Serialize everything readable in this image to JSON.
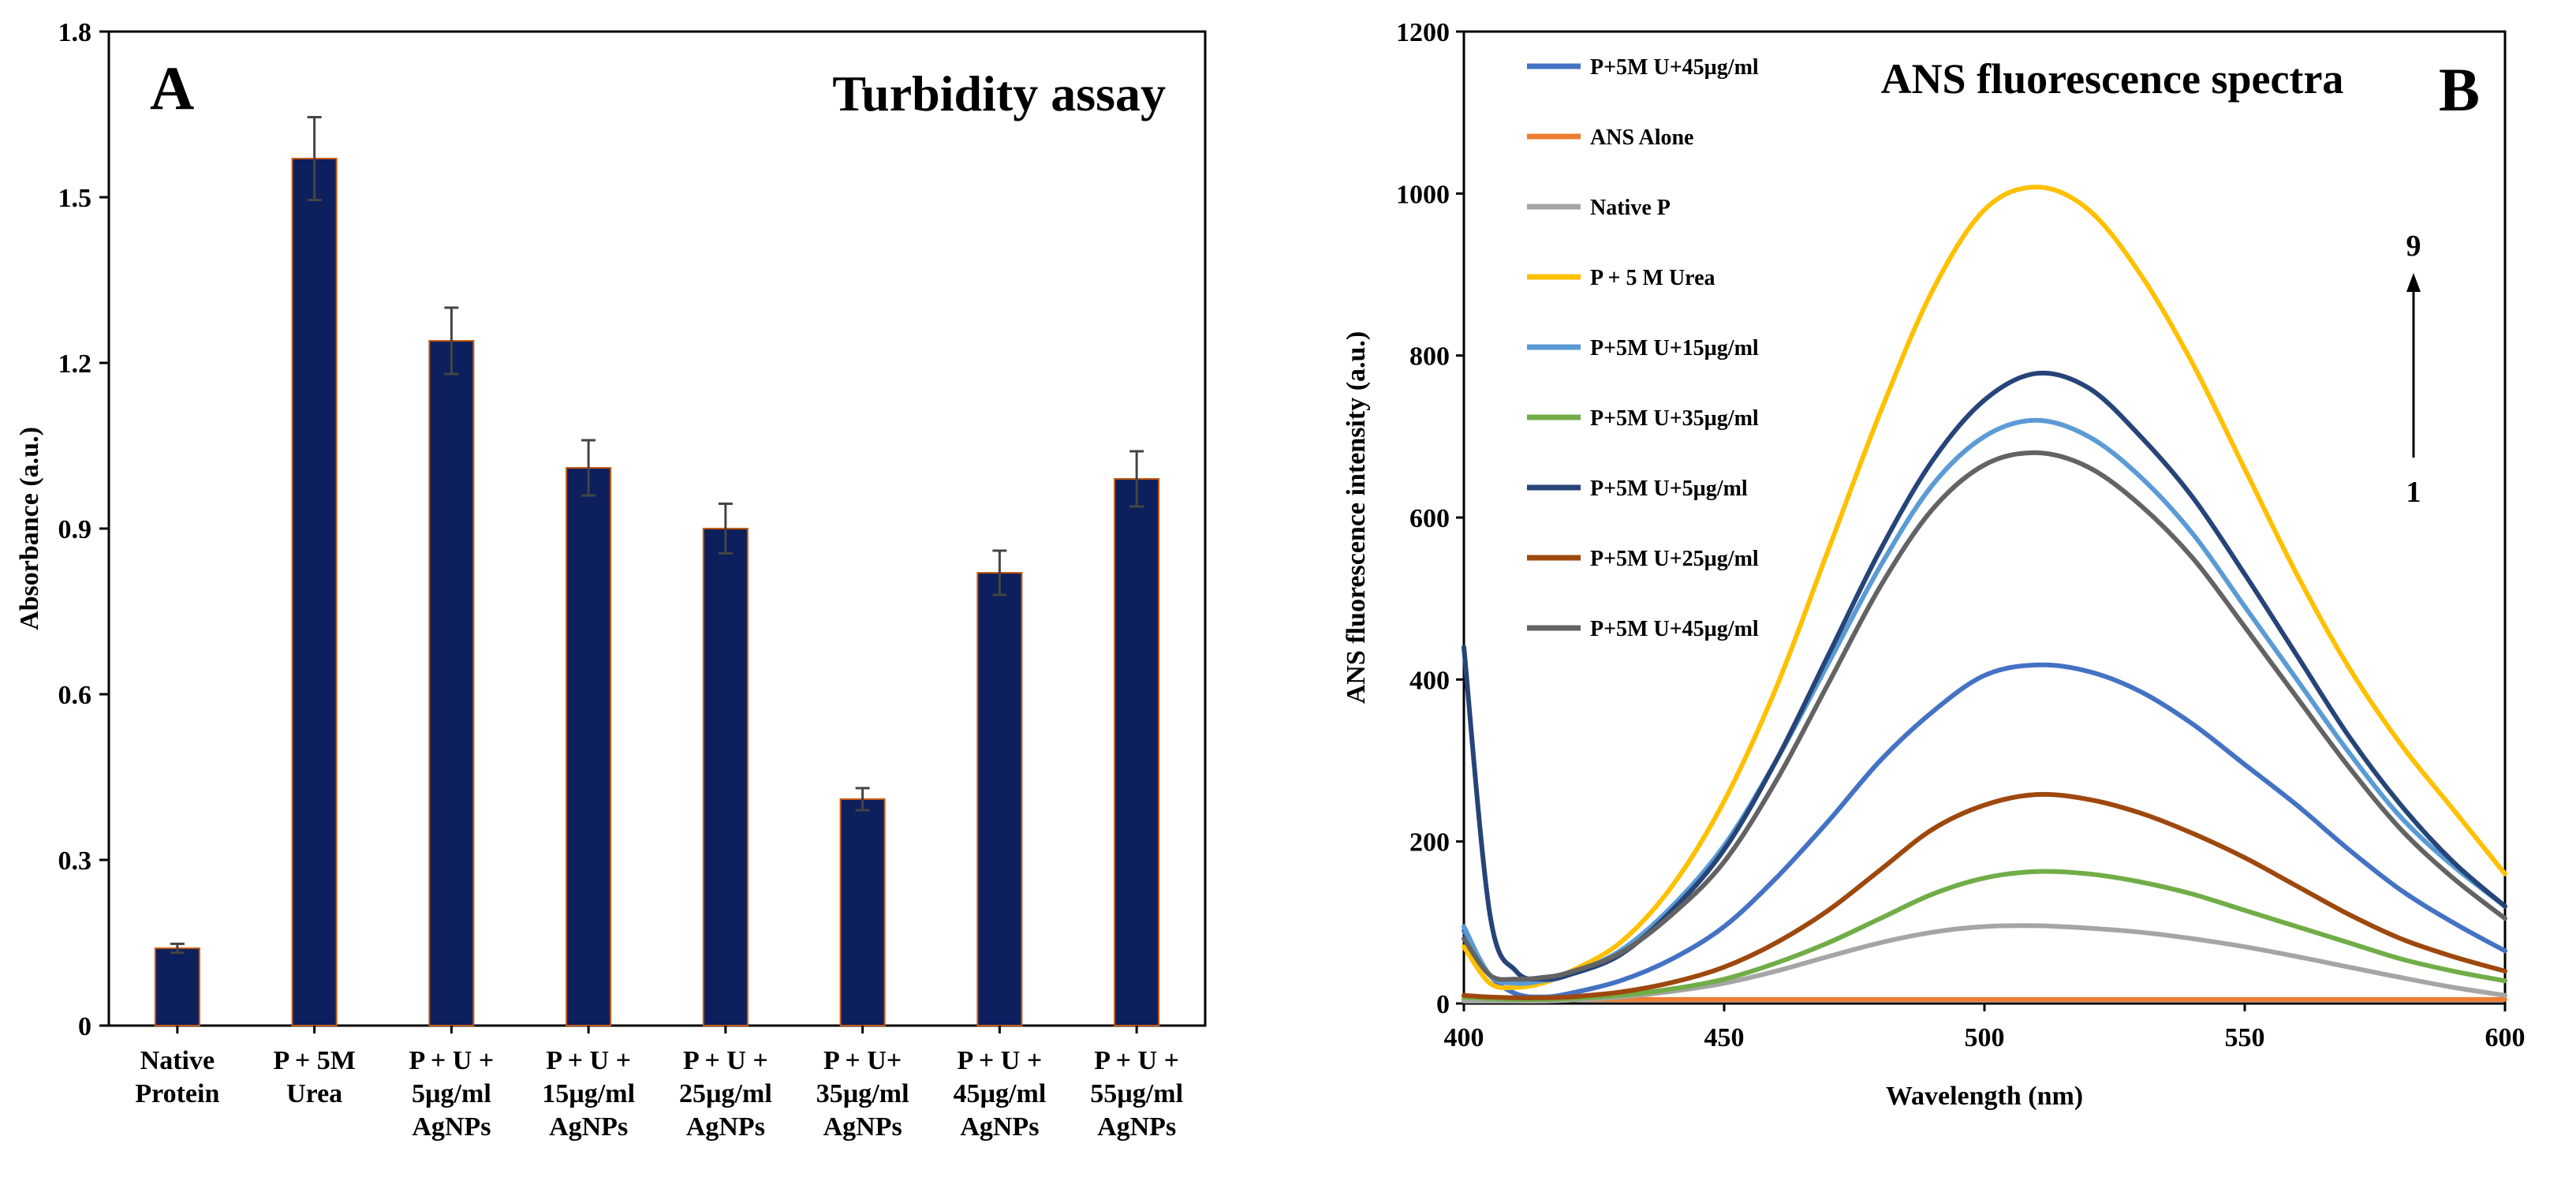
{
  "chart_data": [
    {
      "type": "bar",
      "panel_label": "A",
      "title": "Turbidity assay",
      "xlabel": "",
      "ylabel": "Absorbance (a.u.)",
      "ylim": [
        0,
        1.8
      ],
      "yticks": [
        "0",
        "0.3",
        "0.6",
        "0.9",
        "1.2",
        "1.5",
        "1.8"
      ],
      "grid": false,
      "categories": [
        [
          "Native",
          "Protein"
        ],
        [
          "P + 5M",
          "Urea"
        ],
        [
          "P + U +",
          "5µg/ml",
          "AgNPs"
        ],
        [
          "P + U +",
          "15µg/ml",
          "AgNPs"
        ],
        [
          "P + U +",
          "25µg/ml",
          "AgNPs"
        ],
        [
          "P + U+",
          "35µg/ml",
          "AgNPs"
        ],
        [
          "P + U +",
          "45µg/ml",
          "AgNPs"
        ],
        [
          "P + U +",
          "55µg/ml",
          "AgNPs"
        ]
      ],
      "values": [
        0.14,
        1.57,
        1.24,
        1.01,
        0.9,
        0.41,
        0.82,
        0.99
      ],
      "errors": [
        0.008,
        0.075,
        0.06,
        0.05,
        0.045,
        0.02,
        0.04,
        0.05
      ],
      "bar_color": "#0d1f5c",
      "bar_edge_color": "#c55a11"
    },
    {
      "type": "line",
      "panel_label": "B",
      "title": "ANS fluorescence spectra",
      "xlabel": "Wavelength (nm)",
      "ylabel": "ANS fluorescence intensity (a.u.)",
      "xlim": [
        400,
        600
      ],
      "ylim": [
        0,
        1200
      ],
      "xticks": [
        "400",
        "450",
        "500",
        "550",
        "600"
      ],
      "yticks": [
        "0",
        "200",
        "400",
        "600",
        "800",
        "1000",
        "1200"
      ],
      "legend_position": "top-left",
      "annotation": {
        "top": "9",
        "bottom": "1"
      },
      "x": [
        400,
        405,
        410,
        415,
        420,
        430,
        440,
        450,
        460,
        470,
        480,
        490,
        500,
        510,
        520,
        530,
        540,
        550,
        560,
        570,
        580,
        590,
        600
      ],
      "series": [
        {
          "name": "P+5M U+45µg/ml",
          "color": "#4472c4",
          "values": [
            90,
            35,
            12,
            8,
            12,
            28,
            55,
            95,
            155,
            225,
            300,
            360,
            405,
            418,
            410,
            385,
            345,
            295,
            245,
            190,
            140,
            100,
            65
          ]
        },
        {
          "name": "ANS Alone",
          "color": "#ed7d31",
          "values": [
            5,
            5,
            5,
            5,
            5,
            5,
            5,
            5,
            5,
            5,
            5,
            5,
            5,
            5,
            5,
            5,
            5,
            5,
            5,
            5,
            5,
            5,
            5
          ]
        },
        {
          "name": "Native P",
          "color": "#a5a5a5",
          "values": [
            3,
            3,
            3,
            3,
            4,
            8,
            15,
            25,
            40,
            58,
            75,
            88,
            95,
            96,
            93,
            88,
            80,
            70,
            58,
            45,
            32,
            20,
            10
          ]
        },
        {
          "name": "P + 5 M Urea",
          "color": "#ffc000",
          "values": [
            70,
            25,
            20,
            25,
            38,
            75,
            145,
            250,
            390,
            560,
            730,
            880,
            980,
            1008,
            980,
            900,
            790,
            660,
            530,
            415,
            320,
            240,
            160
          ]
        },
        {
          "name": "P+5M U+15µg/ml",
          "color": "#5b9bd5",
          "values": [
            95,
            35,
            25,
            28,
            35,
            65,
            120,
            195,
            300,
            420,
            540,
            640,
            700,
            720,
            700,
            650,
            580,
            490,
            400,
            310,
            230,
            170,
            120
          ]
        },
        {
          "name": "P+5M U+35µg/ml",
          "color": "#70ad47",
          "values": [
            8,
            6,
            5,
            5,
            6,
            10,
            18,
            30,
            50,
            75,
            105,
            135,
            155,
            163,
            160,
            150,
            135,
            115,
            95,
            75,
            55,
            40,
            28
          ]
        },
        {
          "name": "P+5M U+5µg/ml",
          "color": "#264478",
          "values": [
            440,
            110,
            40,
            30,
            35,
            60,
            115,
            190,
            300,
            430,
            560,
            670,
            745,
            778,
            760,
            700,
            625,
            530,
            430,
            330,
            245,
            175,
            120
          ]
        },
        {
          "name": "P+5M U+25µg/ml",
          "color": "#9e480e",
          "values": [
            10,
            8,
            7,
            7,
            8,
            14,
            26,
            45,
            75,
            115,
            165,
            215,
            245,
            258,
            252,
            235,
            210,
            180,
            145,
            110,
            80,
            58,
            40
          ]
        },
        {
          "name": "P+5M U+45µg/ml",
          "color": "#636363",
          "values": [
            80,
            35,
            30,
            32,
            38,
            62,
            110,
            175,
            275,
            395,
            515,
            610,
            665,
            680,
            662,
            615,
            550,
            465,
            378,
            292,
            215,
            155,
            105
          ]
        }
      ]
    }
  ]
}
